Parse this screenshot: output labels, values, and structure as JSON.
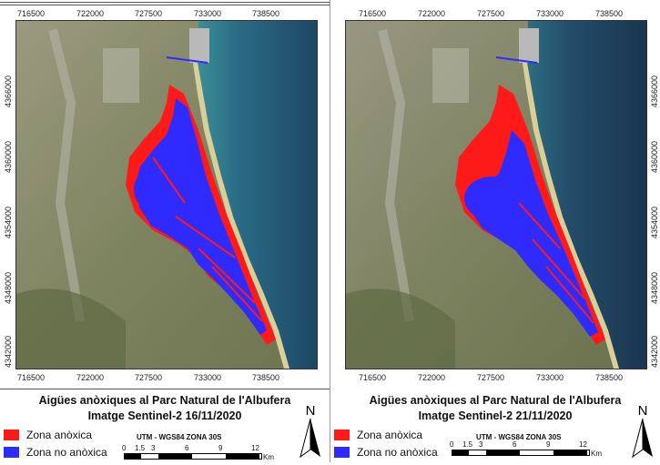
{
  "panels": [
    {
      "x_ticks": [
        "716500",
        "722000",
        "727500",
        "733000",
        "738500"
      ],
      "y_ticks": [
        "4366000",
        "4360000",
        "4354000",
        "4348000",
        "4342000"
      ],
      "title_line1": "Aigües anòxiques al Parc Natural de l'Albufera",
      "title_line2": "Imatge Sentinel-2 16/11/2020",
      "legend_anoxic": "Zona anòxica",
      "legend_non_anoxic": "Zona no anòxica",
      "scale_title": "UTM - WGS84 ZONA 30S",
      "scale_ticks": [
        "0",
        "1.5",
        "3",
        "6",
        "9",
        "12"
      ],
      "scale_unit": "Km",
      "north_label": "N"
    },
    {
      "x_ticks": [
        "716500",
        "722000",
        "727500",
        "733000",
        "738500"
      ],
      "y_ticks": [
        "4366000",
        "4360000",
        "4354000",
        "4348000",
        "4342000"
      ],
      "title_line1": "Aigües anòxiques al Parc Natural de l'Albufera",
      "title_line2": "Imatge Sentinel-2 21/11/2020",
      "legend_anoxic": "Zona anòxica",
      "legend_non_anoxic": "Zona no anòxica",
      "scale_title": "UTM - WGS84 ZONA 30S",
      "scale_ticks": [
        "0",
        "1.5",
        "3",
        "6",
        "9",
        "12"
      ],
      "scale_unit": "Km",
      "north_label": "N"
    }
  ],
  "colors": {
    "anoxic": "#ff1a1a",
    "non_anoxic": "#2f2bff",
    "sea": "#1f4f6a",
    "land": "#8a8a6e"
  }
}
